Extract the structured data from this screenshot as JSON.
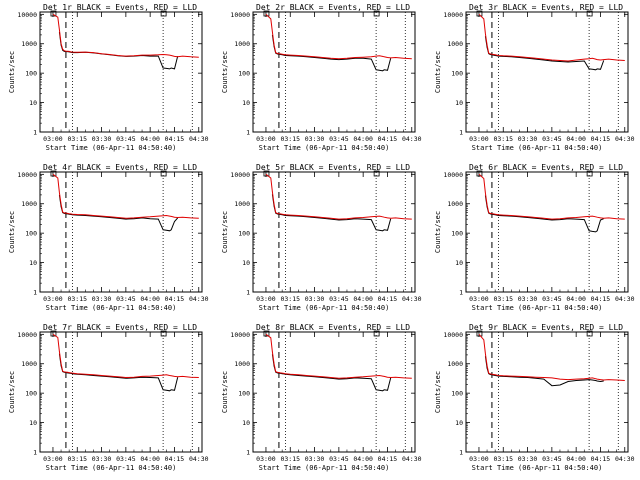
{
  "chart_data": {
    "type": "line",
    "x_ticks": [
      "03:00",
      "03:15",
      "03:30",
      "03:45",
      "04:00",
      "04:15",
      "04:30"
    ],
    "y_ticks": [
      "1",
      "10",
      "100",
      "1000",
      "10000"
    ],
    "ylim": [
      1,
      12000
    ],
    "xlim": [
      "02:52",
      "04:32"
    ],
    "ylabel": "Counts/sec",
    "xlabel": "Start Time (06-Apr-11 04:50:40)",
    "series_legend": {
      "black": "Events",
      "red": "LLD"
    },
    "line_colors": {
      "events": "#000000",
      "lld": "#e00000"
    },
    "x_minutes": [
      0,
      3,
      4,
      5,
      6,
      7,
      8,
      9,
      10,
      11,
      12,
      15,
      20,
      25,
      30,
      35,
      40,
      45,
      50,
      55,
      60,
      65,
      68,
      70,
      72,
      73,
      75,
      77,
      80,
      85,
      90
    ],
    "panels": [
      {
        "title": "Det 1r BLACK = Events, RED = LLD",
        "lld": [
          10000,
          8000,
          3000,
          1000,
          650,
          580,
          560,
          560,
          550,
          530,
          520,
          510,
          520,
          500,
          460,
          430,
          400,
          380,
          390,
          410,
          410,
          420,
          430,
          420,
          410,
          400,
          370,
          360,
          380,
          360,
          350
        ],
        "events": [
          null,
          null,
          2500,
          900,
          600,
          550,
          540,
          540,
          530,
          510,
          500,
          500,
          510,
          490,
          450,
          420,
          390,
          370,
          380,
          400,
          380,
          380,
          150,
          145,
          140,
          150,
          140,
          380,
          null,
          null,
          null
        ]
      },
      {
        "title": "Det 2r BLACK = Events, RED = LLD",
        "lld": [
          10000,
          7000,
          2500,
          900,
          500,
          470,
          460,
          450,
          440,
          430,
          420,
          410,
          400,
          380,
          360,
          340,
          320,
          310,
          320,
          340,
          350,
          360,
          380,
          390,
          370,
          360,
          340,
          330,
          340,
          320,
          310
        ],
        "events": [
          null,
          null,
          2000,
          800,
          480,
          450,
          440,
          430,
          420,
          410,
          400,
          390,
          380,
          360,
          340,
          320,
          300,
          290,
          300,
          320,
          320,
          300,
          130,
          125,
          120,
          130,
          125,
          320,
          null,
          null,
          null
        ]
      },
      {
        "title": "Det 3r BLACK = Events, RED = LLD",
        "lld": [
          10000,
          7000,
          2200,
          900,
          480,
          450,
          440,
          430,
          420,
          410,
          400,
          390,
          380,
          360,
          340,
          320,
          300,
          280,
          270,
          260,
          280,
          300,
          310,
          320,
          300,
          290,
          280,
          290,
          300,
          280,
          270
        ],
        "events": [
          null,
          null,
          1800,
          750,
          460,
          430,
          420,
          410,
          400,
          390,
          380,
          370,
          360,
          340,
          320,
          300,
          280,
          260,
          250,
          240,
          250,
          260,
          140,
          135,
          130,
          140,
          135,
          270,
          null,
          null,
          null
        ]
      },
      {
        "title": "Det 4r BLACK = Events, RED = LLD",
        "lld": [
          10000,
          7500,
          2400,
          950,
          520,
          490,
          480,
          470,
          460,
          450,
          440,
          430,
          420,
          400,
          380,
          360,
          340,
          320,
          330,
          350,
          360,
          380,
          390,
          400,
          380,
          370,
          350,
          340,
          350,
          330,
          320
        ],
        "events": [
          null,
          null,
          2000,
          800,
          500,
          470,
          460,
          450,
          440,
          430,
          420,
          410,
          400,
          380,
          360,
          340,
          320,
          300,
          310,
          330,
          310,
          300,
          130,
          125,
          120,
          130,
          250,
          330,
          null,
          null,
          null
        ]
      },
      {
        "title": "Det 5r BLACK = Events, RED = LLD",
        "lld": [
          10000,
          7500,
          2500,
          950,
          500,
          470,
          460,
          450,
          440,
          430,
          420,
          410,
          400,
          380,
          360,
          340,
          320,
          300,
          310,
          330,
          340,
          360,
          370,
          380,
          360,
          350,
          330,
          320,
          330,
          310,
          300
        ],
        "events": [
          null,
          null,
          2100,
          820,
          480,
          450,
          440,
          430,
          420,
          410,
          400,
          390,
          380,
          360,
          340,
          320,
          300,
          280,
          290,
          310,
          300,
          290,
          130,
          125,
          120,
          130,
          125,
          310,
          null,
          null,
          null
        ]
      },
      {
        "title": "Det 6r BLACK = Events, RED = LLD",
        "lld": [
          10000,
          7200,
          2300,
          900,
          500,
          470,
          460,
          450,
          440,
          430,
          420,
          410,
          400,
          380,
          360,
          340,
          320,
          300,
          310,
          330,
          340,
          360,
          370,
          380,
          360,
          350,
          330,
          320,
          330,
          310,
          300
        ],
        "events": [
          null,
          null,
          1900,
          780,
          480,
          450,
          440,
          430,
          420,
          410,
          400,
          390,
          380,
          360,
          340,
          320,
          300,
          280,
          290,
          310,
          300,
          290,
          120,
          115,
          110,
          120,
          280,
          310,
          null,
          null,
          null
        ]
      },
      {
        "title": "Det 7r BLACK = Events, RED = LLD",
        "lld": [
          10000,
          7800,
          2600,
          1000,
          560,
          530,
          520,
          510,
          500,
          490,
          480,
          460,
          440,
          420,
          400,
          380,
          360,
          340,
          350,
          370,
          380,
          400,
          410,
          420,
          400,
          390,
          370,
          360,
          370,
          350,
          340
        ],
        "events": [
          null,
          null,
          2200,
          850,
          540,
          510,
          500,
          490,
          480,
          470,
          460,
          440,
          420,
          400,
          380,
          360,
          340,
          320,
          330,
          350,
          340,
          330,
          130,
          125,
          120,
          130,
          125,
          350,
          null,
          null,
          null
        ]
      },
      {
        "title": "Det 8r BLACK = Events, RED = LLD",
        "lld": [
          10000,
          7600,
          2500,
          980,
          540,
          510,
          500,
          490,
          480,
          470,
          460,
          440,
          420,
          400,
          380,
          360,
          340,
          320,
          330,
          350,
          360,
          380,
          390,
          400,
          380,
          370,
          350,
          340,
          350,
          330,
          320
        ],
        "events": [
          null,
          null,
          2100,
          830,
          520,
          490,
          480,
          470,
          460,
          450,
          440,
          420,
          400,
          380,
          360,
          340,
          320,
          300,
          310,
          330,
          320,
          310,
          130,
          125,
          120,
          130,
          125,
          330,
          null,
          null,
          null
        ]
      },
      {
        "title": "Det 9r BLACK = Events, RED = LLD",
        "lld": [
          10000,
          6500,
          2200,
          850,
          480,
          450,
          440,
          430,
          420,
          410,
          400,
          390,
          380,
          370,
          360,
          350,
          340,
          330,
          300,
          290,
          300,
          310,
          320,
          330,
          310,
          300,
          290,
          280,
          290,
          280,
          270
        ],
        "events": [
          null,
          null,
          1800,
          700,
          460,
          430,
          420,
          410,
          400,
          390,
          380,
          370,
          360,
          350,
          340,
          320,
          300,
          180,
          190,
          250,
          270,
          280,
          290,
          280,
          270,
          260,
          250,
          260,
          null,
          null,
          null
        ]
      }
    ],
    "dashed_marker_minute": 8,
    "dotted_marker_minutes": [
      12,
      68,
      86
    ],
    "box_marker_minutes": [
      0,
      68
    ]
  }
}
